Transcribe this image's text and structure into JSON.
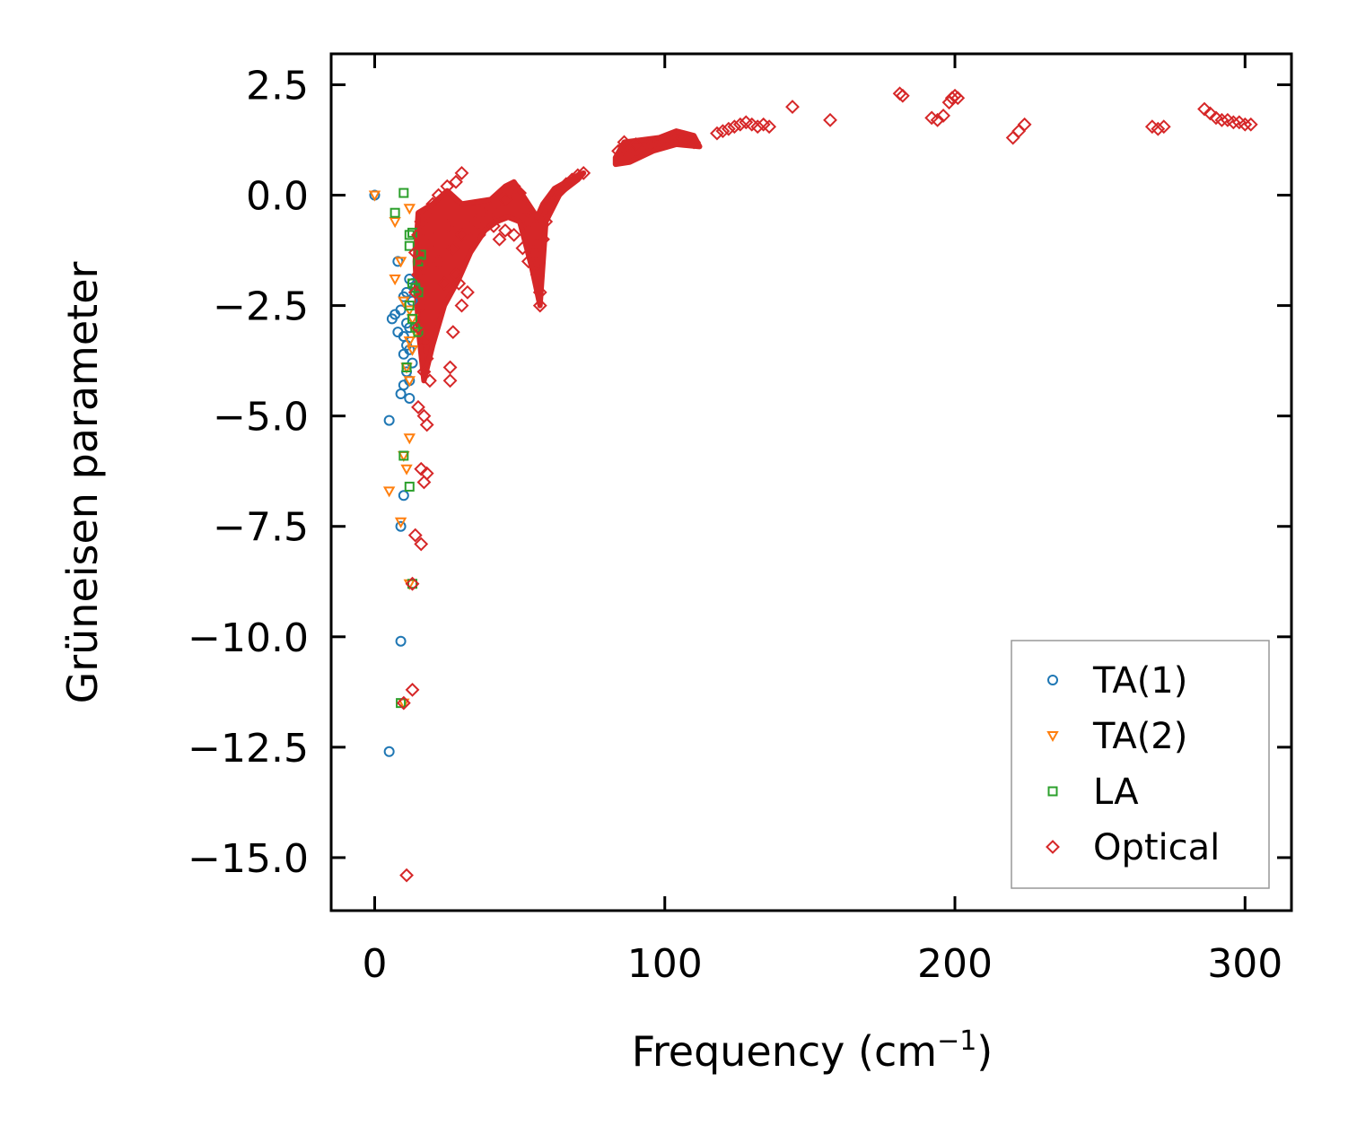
{
  "chart_data": {
    "type": "scatter",
    "title": "",
    "xlabel": "Frequency (cm",
    "xlabel_sup": "−1",
    "xlabel_end": ")",
    "ylabel": "Grüneisen parameter",
    "xlim": [
      -15,
      316
    ],
    "ylim": [
      -16.2,
      3.2
    ],
    "xticks": [
      0,
      100,
      200,
      300
    ],
    "yticks": [
      2.5,
      0.0,
      -2.5,
      -5.0,
      -7.5,
      -10.0,
      -12.5,
      -15.0
    ],
    "xtick_labels": [
      "0",
      "100",
      "200",
      "300"
    ],
    "ytick_labels": [
      "2.5",
      "0.0",
      "−2.5",
      "−5.0",
      "−7.5",
      "−10.0",
      "−12.5",
      "−15.0"
    ],
    "legend_position": "lower right",
    "series": [
      {
        "name": "TA(1)",
        "marker": "circle",
        "color": "#1f77b4",
        "points": [
          [
            0,
            0
          ],
          [
            8,
            -1.5
          ],
          [
            12,
            -1.9
          ],
          [
            13,
            -2.0
          ],
          [
            14,
            -2.1
          ],
          [
            11,
            -2.2
          ],
          [
            10,
            -2.3
          ],
          [
            13,
            -2.4
          ],
          [
            9,
            -2.6
          ],
          [
            7,
            -2.7
          ],
          [
            6,
            -2.8
          ],
          [
            11,
            -2.9
          ],
          [
            12,
            -3.0
          ],
          [
            8,
            -3.1
          ],
          [
            10,
            -3.2
          ],
          [
            11,
            -3.4
          ],
          [
            12,
            -3.5
          ],
          [
            10,
            -3.6
          ],
          [
            13,
            -3.8
          ],
          [
            11,
            -4.0
          ],
          [
            12,
            -4.2
          ],
          [
            10,
            -4.3
          ],
          [
            9,
            -4.5
          ],
          [
            12,
            -4.6
          ],
          [
            5,
            -5.1
          ],
          [
            10,
            -6.8
          ],
          [
            9,
            -7.5
          ],
          [
            9,
            -10.1
          ],
          [
            5,
            -12.6
          ]
        ]
      },
      {
        "name": "TA(2)",
        "marker": "triangle-down",
        "color": "#ff7f0e",
        "points": [
          [
            0,
            0
          ],
          [
            12,
            -0.3
          ],
          [
            7,
            -0.6
          ],
          [
            9,
            -1.5
          ],
          [
            7,
            -1.9
          ],
          [
            10,
            -2.4
          ],
          [
            12,
            -2.6
          ],
          [
            13,
            -2.8
          ],
          [
            14,
            -3.1
          ],
          [
            12,
            -3.3
          ],
          [
            13,
            -3.5
          ],
          [
            11,
            -3.9
          ],
          [
            12,
            -4.2
          ],
          [
            12,
            -5.5
          ],
          [
            10,
            -5.9
          ],
          [
            11,
            -6.2
          ],
          [
            5,
            -6.7
          ],
          [
            9,
            -7.4
          ],
          [
            12,
            -8.8
          ],
          [
            10,
            -11.5
          ]
        ]
      },
      {
        "name": "LA",
        "marker": "square",
        "color": "#2ca02c",
        "points": [
          [
            10,
            0.05
          ],
          [
            7,
            -0.4
          ],
          [
            12,
            -0.9
          ],
          [
            13,
            -0.85
          ],
          [
            12,
            -1.15
          ],
          [
            16,
            -1.35
          ],
          [
            15,
            -1.5
          ],
          [
            13,
            -2.0
          ],
          [
            14,
            -2.1
          ],
          [
            15,
            -2.2
          ],
          [
            12,
            -2.5
          ],
          [
            13,
            -2.8
          ],
          [
            14,
            -3.0
          ],
          [
            15,
            -3.1
          ],
          [
            11,
            -3.9
          ],
          [
            10,
            -5.9
          ],
          [
            12,
            -6.6
          ],
          [
            13,
            -8.8
          ],
          [
            9,
            -11.5
          ]
        ]
      },
      {
        "name": "Optical",
        "marker": "diamond",
        "color": "#d62728",
        "points": [
          [
            30,
            0.5
          ],
          [
            28,
            0.3
          ],
          [
            25,
            0.2
          ],
          [
            22,
            0.0
          ],
          [
            20,
            -0.2
          ],
          [
            18,
            -0.4
          ],
          [
            16,
            -0.6
          ],
          [
            15,
            -0.9
          ],
          [
            14,
            -1.3
          ],
          [
            16,
            -1.6
          ],
          [
            15,
            -1.8
          ],
          [
            14,
            -2.2
          ],
          [
            16,
            -2.5
          ],
          [
            15,
            -3.0
          ],
          [
            17,
            -3.3
          ],
          [
            18,
            -3.7
          ],
          [
            17,
            -4.0
          ],
          [
            19,
            -4.2
          ],
          [
            26,
            -3.9
          ],
          [
            26,
            -4.2
          ],
          [
            27,
            -3.1
          ],
          [
            30,
            -2.5
          ],
          [
            32,
            -2.2
          ],
          [
            29,
            -2.0
          ],
          [
            15,
            -4.8
          ],
          [
            17,
            -5.0
          ],
          [
            18,
            -5.2
          ],
          [
            16,
            -6.2
          ],
          [
            18,
            -6.3
          ],
          [
            17,
            -6.5
          ],
          [
            14,
            -7.7
          ],
          [
            16,
            -7.9
          ],
          [
            13,
            -8.8
          ],
          [
            13,
            -11.2
          ],
          [
            10,
            -11.5
          ],
          [
            11,
            -15.4
          ],
          [
            20,
            -1.0
          ],
          [
            22,
            -1.5
          ],
          [
            24,
            -2.0
          ],
          [
            25,
            -0.7
          ],
          [
            27,
            -1.2
          ],
          [
            28,
            -1.8
          ],
          [
            30,
            -0.9
          ],
          [
            33,
            -1.0
          ],
          [
            35,
            -0.6
          ],
          [
            37,
            -0.4
          ],
          [
            40,
            -0.3
          ],
          [
            42,
            -0.2
          ],
          [
            45,
            -0.1
          ],
          [
            47,
            0.1
          ],
          [
            48,
            0.2
          ],
          [
            50,
            0.05
          ],
          [
            52,
            -0.3
          ],
          [
            53,
            -0.6
          ],
          [
            54,
            -1.0
          ],
          [
            55,
            -1.3
          ],
          [
            56,
            -1.8
          ],
          [
            57,
            -2.5
          ],
          [
            57,
            -2.2
          ],
          [
            51,
            -1.2
          ],
          [
            53,
            -1.5
          ],
          [
            58,
            -1.0
          ],
          [
            59,
            -0.6
          ],
          [
            60,
            -0.2
          ],
          [
            62,
            0.0
          ],
          [
            64,
            0.1
          ],
          [
            66,
            0.25
          ],
          [
            68,
            0.35
          ],
          [
            70,
            0.45
          ],
          [
            72,
            0.5
          ],
          [
            45,
            -0.8
          ],
          [
            48,
            -0.9
          ],
          [
            43,
            -1.0
          ],
          [
            41,
            -0.7
          ],
          [
            39,
            -0.5
          ],
          [
            36,
            -0.9
          ],
          [
            84,
            1.0
          ],
          [
            86,
            1.1
          ],
          [
            88,
            0.9
          ],
          [
            90,
            0.95
          ],
          [
            92,
            1.05
          ],
          [
            94,
            1.1
          ],
          [
            96,
            1.15
          ],
          [
            98,
            1.2
          ],
          [
            100,
            1.25
          ],
          [
            102,
            1.3
          ],
          [
            104,
            1.35
          ],
          [
            106,
            1.3
          ],
          [
            108,
            1.25
          ],
          [
            110,
            1.2
          ],
          [
            86,
            1.2
          ],
          [
            90,
            1.15
          ],
          [
            118,
            1.4
          ],
          [
            120,
            1.45
          ],
          [
            122,
            1.5
          ],
          [
            124,
            1.55
          ],
          [
            126,
            1.6
          ],
          [
            128,
            1.65
          ],
          [
            130,
            1.6
          ],
          [
            132,
            1.55
          ],
          [
            134,
            1.6
          ],
          [
            136,
            1.55
          ],
          [
            144,
            2.0
          ],
          [
            157,
            1.7
          ],
          [
            181,
            2.3
          ],
          [
            182,
            2.25
          ],
          [
            192,
            1.75
          ],
          [
            194,
            1.7
          ],
          [
            196,
            1.8
          ],
          [
            198,
            2.1
          ],
          [
            199,
            2.2
          ],
          [
            200,
            2.25
          ],
          [
            201,
            2.2
          ],
          [
            220,
            1.3
          ],
          [
            222,
            1.45
          ],
          [
            224,
            1.6
          ],
          [
            268,
            1.55
          ],
          [
            270,
            1.5
          ],
          [
            272,
            1.55
          ],
          [
            286,
            1.95
          ],
          [
            288,
            1.85
          ],
          [
            290,
            1.75
          ],
          [
            292,
            1.7
          ],
          [
            294,
            1.7
          ],
          [
            296,
            1.65
          ],
          [
            298,
            1.65
          ],
          [
            300,
            1.6
          ],
          [
            302,
            1.6
          ]
        ]
      }
    ],
    "dense_regions": [
      {
        "series": "Optical",
        "polygon": [
          [
            15,
            -0.4
          ],
          [
            20,
            -0.2
          ],
          [
            25,
            0.1
          ],
          [
            30,
            -0.2
          ],
          [
            35,
            -0.15
          ],
          [
            40,
            -0.1
          ],
          [
            45,
            0.2
          ],
          [
            48,
            0.3
          ],
          [
            52,
            -0.1
          ],
          [
            56,
            -0.5
          ],
          [
            58,
            -0.2
          ],
          [
            62,
            0.15
          ],
          [
            66,
            0.3
          ],
          [
            70,
            0.45
          ],
          [
            72,
            0.5
          ],
          [
            70,
            0.35
          ],
          [
            64,
            0.05
          ],
          [
            59,
            -0.6
          ],
          [
            57,
            -2.5
          ],
          [
            54,
            -1.6
          ],
          [
            50,
            -0.6
          ],
          [
            46,
            -0.5
          ],
          [
            42,
            -0.6
          ],
          [
            38,
            -0.8
          ],
          [
            33,
            -1.3
          ],
          [
            29,
            -1.9
          ],
          [
            24,
            -2.5
          ],
          [
            20,
            -3.4
          ],
          [
            17,
            -4.2
          ],
          [
            15,
            -3.0
          ],
          [
            14,
            -1.5
          ]
        ]
      },
      {
        "series": "Optical",
        "polygon": [
          [
            83,
            0.85
          ],
          [
            86,
            1.2
          ],
          [
            92,
            1.25
          ],
          [
            98,
            1.3
          ],
          [
            104,
            1.45
          ],
          [
            110,
            1.35
          ],
          [
            112,
            1.1
          ],
          [
            104,
            1.15
          ],
          [
            96,
            1.0
          ],
          [
            88,
            0.75
          ],
          [
            83,
            0.7
          ]
        ]
      }
    ]
  }
}
